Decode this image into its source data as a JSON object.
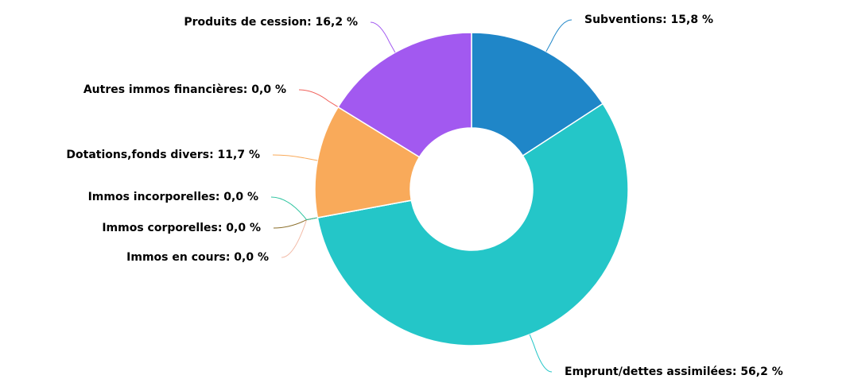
{
  "chart_data": {
    "type": "pie",
    "values": [
      15.8,
      56.2,
      0.0,
      0.0,
      0.0,
      11.7,
      0.0,
      16.2
    ],
    "value_labels": [
      "Subventions: 15,8 %",
      "Emprunt/dettes assimilées: 56,2 %",
      "Immos en cours: 0,0 %",
      "Immos corporelles: 0,0 %",
      "Immos incorporelles: 0,0 %",
      "Dotations,fonds divers: 11,7 %",
      "Autres immos financières: 0,0 %",
      "Produits de cession: 16,2 %"
    ],
    "colors": [
      "#1f86c8",
      "#24c6c8",
      "#f2bba8",
      "#8b6e2a",
      "#2ec4a0",
      "#f9aa5a",
      "#f0605a",
      "#a259f0"
    ],
    "donut": true
  }
}
